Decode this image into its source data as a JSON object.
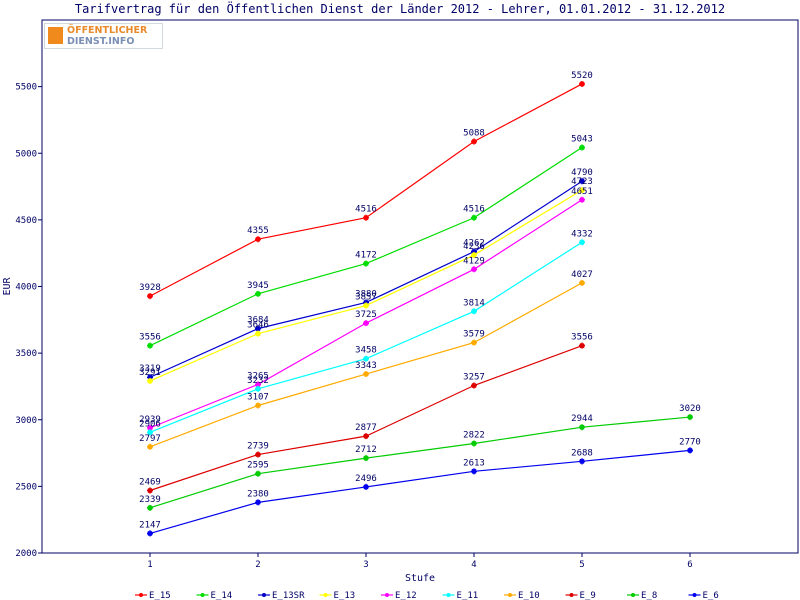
{
  "chart_data": {
    "type": "line",
    "title": "Tarifvertrag für den Öffentlichen Dienst der Länder 2012 - Lehrer, 01.01.2012 - 31.12.2012",
    "xlabel": "Stufe",
    "ylabel": "EUR",
    "xlim": [
      0,
      7
    ],
    "ylim": [
      2000,
      6000
    ],
    "x_ticks": [
      1,
      2,
      3,
      4,
      5,
      6
    ],
    "y_ticks": [
      2000,
      2500,
      3000,
      3500,
      4000,
      4500,
      5000,
      5500
    ],
    "grid": false,
    "legend_position": "bottom",
    "series": [
      {
        "name": "E_15",
        "color": "#ff0000",
        "x": [
          1,
          2,
          3,
          4,
          5
        ],
        "values": [
          3928,
          4355,
          4516,
          5088,
          5520
        ]
      },
      {
        "name": "E_14",
        "color": "#00dd00",
        "x": [
          1,
          2,
          3,
          4,
          5
        ],
        "values": [
          3556,
          3945,
          4172,
          4516,
          5043
        ]
      },
      {
        "name": "E_13SR",
        "color": "#0000cc",
        "x": [
          1,
          2,
          3,
          4,
          5
        ],
        "values": [
          3319,
          3684,
          3880,
          4262,
          4790
        ]
      },
      {
        "name": "E_13",
        "color": "#ffff00",
        "x": [
          1,
          2,
          3,
          4,
          5
        ],
        "values": [
          3291,
          3646,
          3857,
          4236,
          4723
        ]
      },
      {
        "name": "E_12",
        "color": "#ff00ff",
        "x": [
          1,
          2,
          3,
          4,
          5
        ],
        "values": [
          2939,
          3265,
          3725,
          4129,
          4651
        ]
      },
      {
        "name": "E_11",
        "color": "#00ffff",
        "x": [
          1,
          2,
          3,
          4,
          5
        ],
        "values": [
          2906,
          3232,
          3458,
          3814,
          4332
        ]
      },
      {
        "name": "E_10",
        "color": "#ffaa00",
        "x": [
          1,
          2,
          3,
          4,
          5
        ],
        "values": [
          2797,
          3107,
          3343,
          3579,
          4027
        ]
      },
      {
        "name": "E_9",
        "color": "#dd0000",
        "x": [
          1,
          2,
          3,
          4,
          5
        ],
        "values": [
          2469,
          2739,
          2877,
          3257,
          3556
        ]
      },
      {
        "name": "E_8",
        "color": "#00cc00",
        "x": [
          1,
          2,
          3,
          4,
          5,
          6
        ],
        "values": [
          2339,
          2595,
          2712,
          2822,
          2944,
          3020
        ]
      },
      {
        "name": "E_6",
        "color": "#0000ee",
        "x": [
          1,
          2,
          3,
          4,
          5,
          6
        ],
        "values": [
          2147,
          2380,
          2496,
          2613,
          2688,
          2770
        ]
      }
    ]
  },
  "logo": {
    "line1": "ÖFFENTLICHER",
    "line2": "DIENST.INFO"
  }
}
